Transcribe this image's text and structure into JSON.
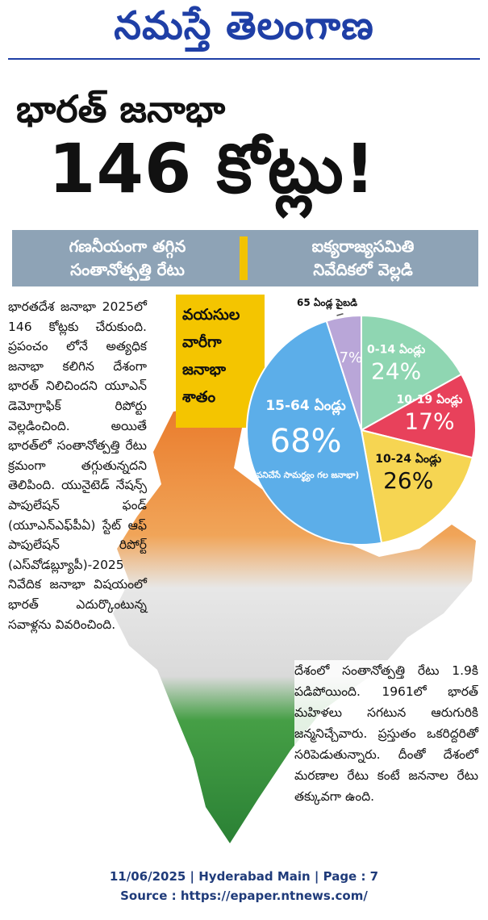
{
  "masthead": "నమస్తే తెలంగాణ",
  "headline": {
    "line1": "భారత్ జనాభా",
    "line2": "146 కోట్లు!"
  },
  "banner": {
    "left": [
      "గణనీయంగా తగ్గిన",
      "సంతానోత్పత్తి రేటు"
    ],
    "right": [
      "ఐక్యరాజ్యసమితి",
      "నివేదికలో వెల్లడి"
    ]
  },
  "body_left": "భారతదేశ జనాభా 2025లో 146 కోట్లకు చేరుకుంది. ప్రపంచం లోనే అత్యధిక జనాభా కలిగిన దేశంగా భారత్ నిలిచిందని యూఎన్ డెమోగ్రాఫిక్ రిపోర్టు వెల్లడించింది. అయితే భారత్‌లో సంతానోత్పత్తి రేటు క్రమంగా తగ్గుతున్నదని తెలిపింది. యునైటెడ్ నేషన్స్ పాపులేషన్ ఫండ్ (యూఎన్‌ఎఫ్‌పీఏ) స్టేట్ ఆఫ్ పాపులేషన్ రిపోర్ట్ (ఎస్‌వోడబ్ల్యూపీ)-2025 నివేదిక జనాభా విషయంలో భారత్ ఎదుర్కొంటున్న సవాళ్లను వివరించింది.",
  "body_right": "దేశంలో సంతానోత్పత్తి రేటు 1.9కి పడిపోయింది. 1961లో భారత్ మహిళలు సగటున ఆరుగురికి జన్మనిచ్చేవారు. ప్రస్తుతం ఒకరిద్దరితో సరిపెడుతున్నారు. దీంతో దేశంలో మరణాల రేటు కంటే జననాల రేటు తక్కువగా ఉంది.",
  "footer": {
    "line1": "11/06/2025 | Hyderabad Main | Page : 7",
    "line2": "Source : https://epaper.ntnews.com/"
  },
  "chart_data": {
    "type": "pie",
    "title": "వయసుల వారీగా జనాభా శాతం",
    "categories": [
      "0-14 ఏండ్లు",
      "10-19 ఏండ్లు",
      "10-24 ఏండ్లు",
      "15-64 ఏండ్లు",
      "65 ఏండ్ల పైబడి"
    ],
    "values": [
      24,
      17,
      26,
      68,
      7
    ],
    "value_labels": [
      "24%",
      "17%",
      "26%",
      "68%",
      "7%"
    ],
    "colors": [
      "#8fd6b2",
      "#e8415b",
      "#f6d552",
      "#5caee9",
      "#b9a6d8"
    ],
    "annotation": "(పనిచేసే సామర్థ్యం గల జనాభా)"
  }
}
